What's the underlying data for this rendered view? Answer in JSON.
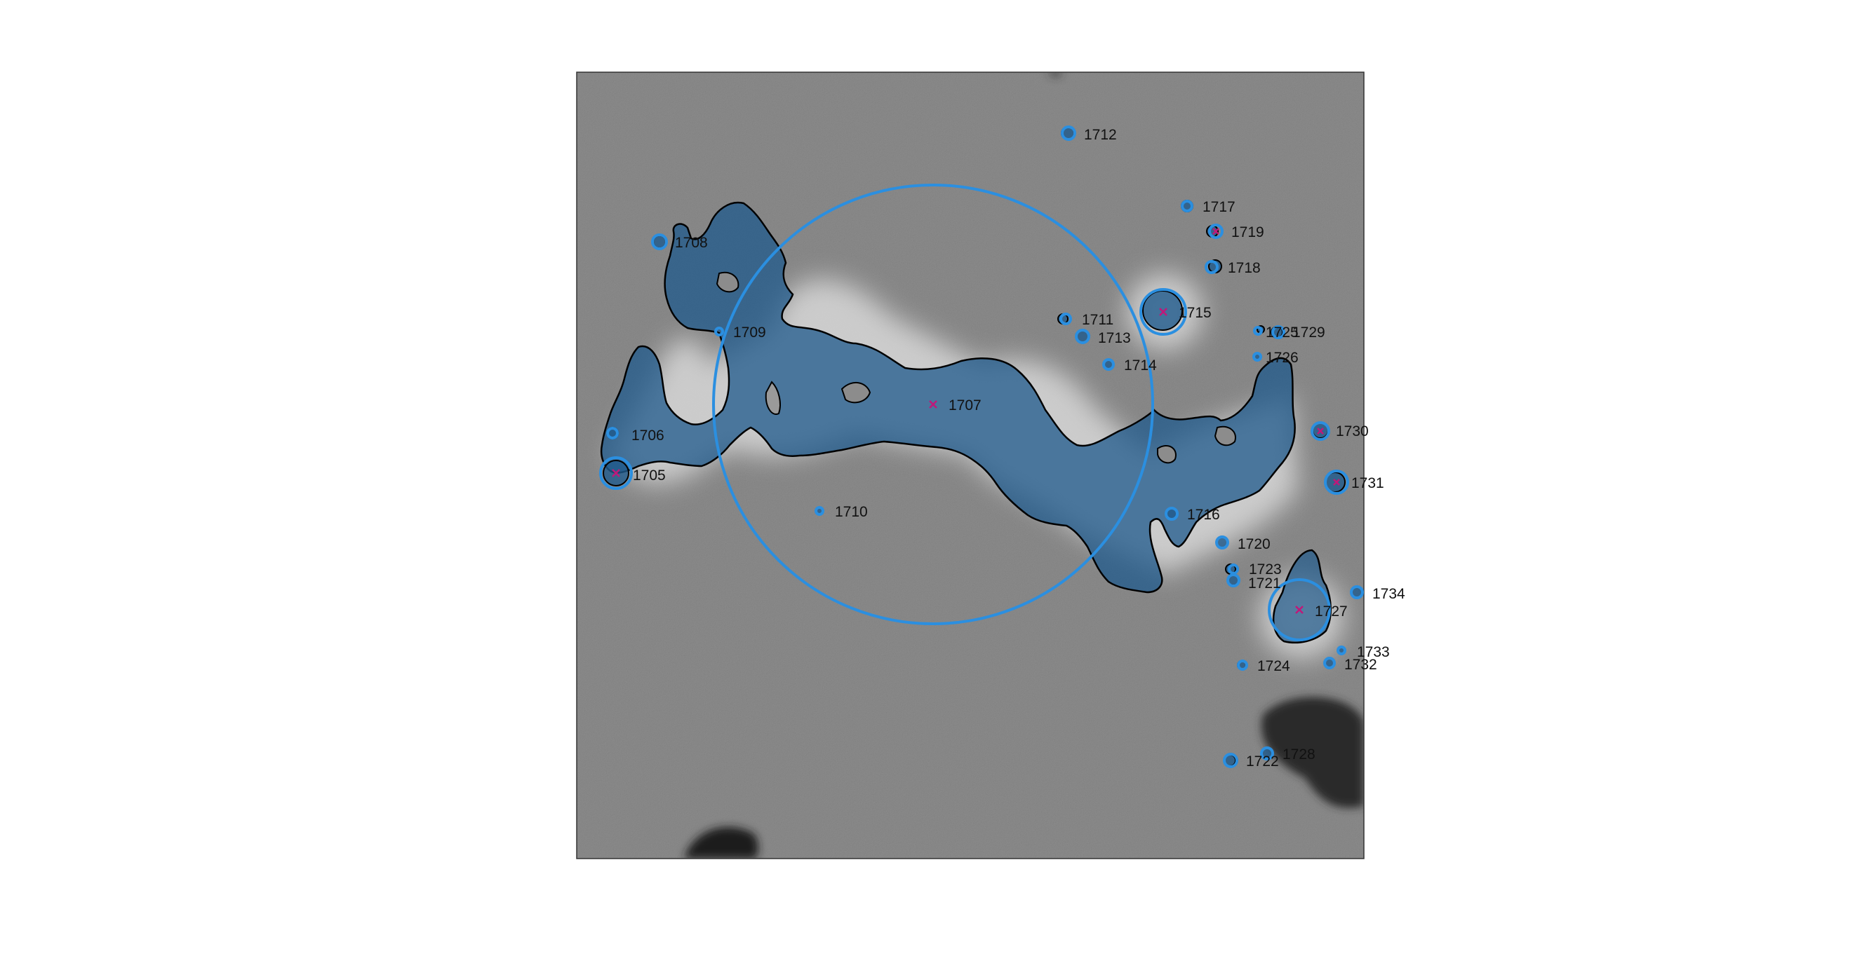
{
  "figure": {
    "type": "annotated micrograph",
    "colors": {
      "background": "#ffffff",
      "micrograph_gray": "#8a8a8a",
      "particle_fill": "#1f5a8c",
      "particle_outline": "#000000",
      "marker_circle": "#2b8fe0",
      "center_cross": "#c0187a",
      "label_text": "#111111"
    }
  },
  "particles": [
    {
      "label": "1705"
    },
    {
      "label": "1706"
    },
    {
      "label": "1707"
    },
    {
      "label": "1708"
    },
    {
      "label": "1709"
    },
    {
      "label": "1710"
    },
    {
      "label": "1711"
    },
    {
      "label": "1712"
    },
    {
      "label": "1713"
    },
    {
      "label": "1714"
    },
    {
      "label": "1715"
    },
    {
      "label": "1716"
    },
    {
      "label": "1717"
    },
    {
      "label": "1718"
    },
    {
      "label": "1719"
    },
    {
      "label": "1720"
    },
    {
      "label": "1721"
    },
    {
      "label": "1722"
    },
    {
      "label": "1723"
    },
    {
      "label": "1724"
    },
    {
      "label": "1725"
    },
    {
      "label": "1726"
    },
    {
      "label": "1727"
    },
    {
      "label": "1728"
    },
    {
      "label": "1729"
    },
    {
      "label": "1730"
    },
    {
      "label": "1731"
    },
    {
      "label": "1732"
    },
    {
      "label": "1733"
    },
    {
      "label": "1734"
    }
  ]
}
